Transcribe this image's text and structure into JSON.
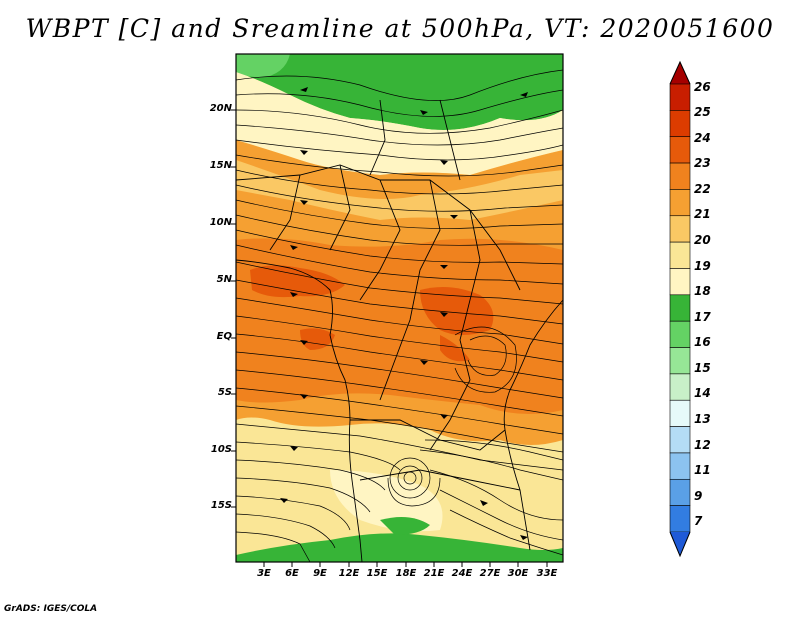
{
  "title": "WBPT [C] and Sreamline at 500hPa, VT: 2020051600",
  "credit": "GrADS: IGES/COLA",
  "map": {
    "lat_labels": [
      "20N",
      "15N",
      "10N",
      "5N",
      "EQ",
      "5S",
      "10S",
      "15S"
    ],
    "lon_labels": [
      "3E",
      "6E",
      "9E",
      "12E",
      "15E",
      "18E",
      "21E",
      "24E",
      "27E",
      "30E",
      "33E"
    ]
  },
  "colorbar": {
    "labels": [
      "26",
      "25",
      "24",
      "23",
      "22",
      "21",
      "20",
      "19",
      "18",
      "17",
      "16",
      "15",
      "14",
      "13",
      "12",
      "11",
      "9",
      "7"
    ],
    "colors": [
      "#a50000",
      "#c81e00",
      "#dc3c00",
      "#e65a0a",
      "#f0821e",
      "#f5a032",
      "#fac864",
      "#fae696",
      "#fff5c3",
      "#37b437",
      "#64d264",
      "#96e696",
      "#c8f0c8",
      "#e6fafa",
      "#b4dcf5",
      "#8cc3f0",
      "#5aa0e6",
      "#327de1",
      "#1e5ad7"
    ]
  }
}
